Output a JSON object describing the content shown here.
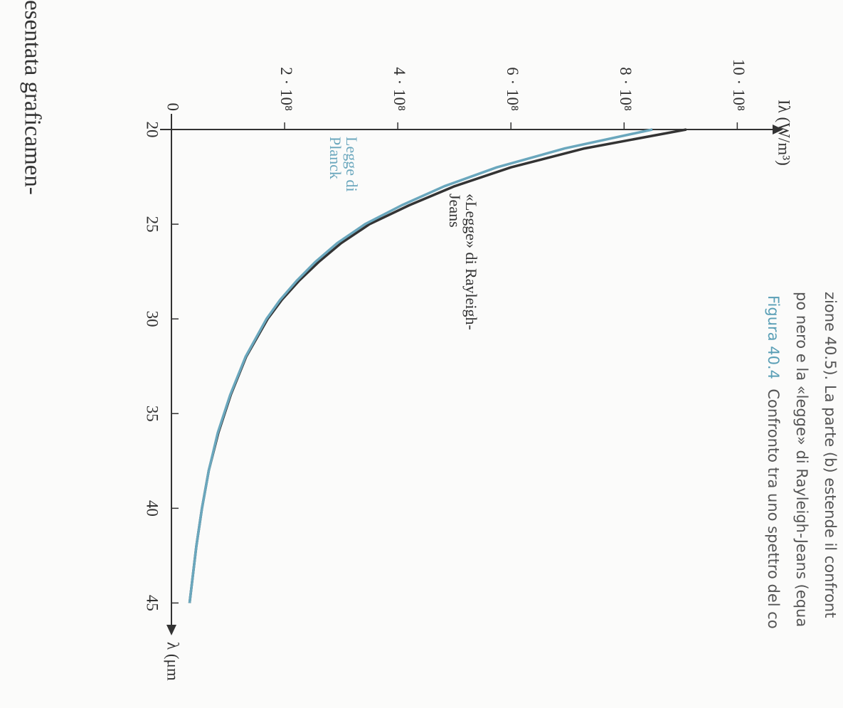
{
  "chart_data": {
    "type": "line",
    "x_label": "λ (μm",
    "y_label": "Iλ (W/m³)",
    "x": [
      20,
      21,
      22,
      23,
      24,
      25,
      26,
      27,
      28,
      29,
      30,
      32,
      34,
      36,
      38,
      40,
      42,
      45
    ],
    "series": [
      {
        "name": "«Legge» di Rayleigh-Jeans",
        "color": "#333333",
        "values": [
          910000000,
          730000000,
          600000000,
          500000000,
          420000000,
          350000000,
          300000000,
          260000000,
          225000000,
          195000000,
          170000000,
          132000000,
          105000000,
          83000000,
          66000000,
          54000000,
          44000000,
          32000000
        ]
      },
      {
        "name": "Legge di Planck",
        "color": "#6aa7bd",
        "values": [
          850000000,
          695000000,
          575000000,
          482000000,
          407000000,
          342000000,
          293000000,
          254000000,
          221000000,
          192000000,
          168000000,
          131000000,
          104000000,
          82000000,
          66000000,
          54000000,
          44000000,
          32000000
        ]
      }
    ],
    "xlim": [
      20,
      46.6
    ],
    "ylim": [
      0,
      1080000000
    ],
    "xticks": [
      20,
      25,
      30,
      35,
      40,
      45
    ],
    "yticks": [
      0,
      {
        "value": 200000000,
        "label": "2 · 10⁸"
      },
      {
        "value": 400000000,
        "label": "4 · 10⁸"
      },
      {
        "value": 600000000,
        "label": "6 · 10⁸"
      },
      {
        "value": 800000000,
        "label": "8 · 10⁸"
      },
      {
        "value": 1000000000,
        "label": "10 · 10⁸"
      }
    ]
  },
  "page_text": {
    "body_fragment": "esentata graficamen-",
    "caption": {
      "label": "Figura 40.4",
      "lines": [
        "Confronto tra uno spettro del co",
        "po nero e la «legge» di Rayleigh-Jeans (equa",
        "zione 40.5). La parte (b) estende il confront"
      ]
    }
  }
}
